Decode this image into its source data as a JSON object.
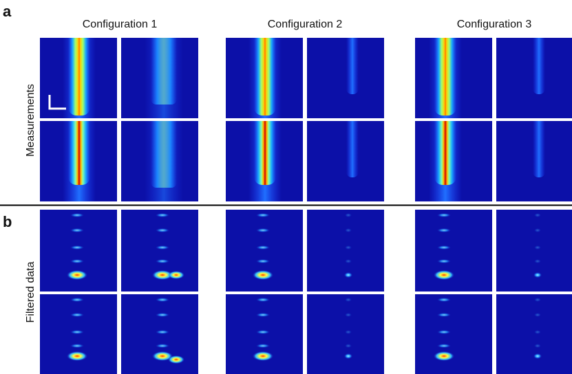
{
  "panels": [
    {
      "label": "a",
      "row_label": "Measurements"
    },
    {
      "label": "b",
      "row_label": "Filtered data"
    }
  ],
  "columns": [
    "Configuration 1",
    "Configuration 2",
    "Configuration 3"
  ]
}
